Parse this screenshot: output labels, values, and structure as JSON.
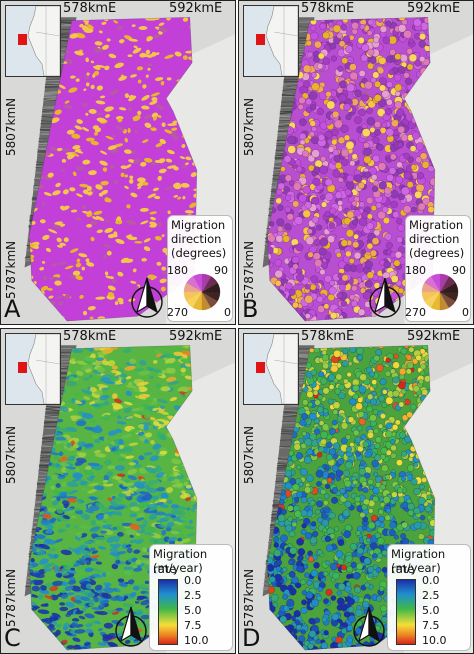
{
  "figure": {
    "panels": [
      {
        "letter": "A",
        "variable": "direction",
        "x_ticks": [
          "578kmE",
          "592kmE"
        ],
        "y_ticks": [
          "5807kmN",
          "5787kmN"
        ],
        "legend": {
          "title_lines": [
            "Migration",
            "direction",
            "(degrees)"
          ],
          "wheel_labels": {
            "top_left": "180",
            "top_right": "90",
            "bottom_left": "270",
            "bottom_right": "0"
          }
        }
      },
      {
        "letter": "B",
        "variable": "direction",
        "x_ticks": [
          "578kmE",
          "592kmE"
        ],
        "y_ticks": [
          "5807kmN",
          "5787kmN"
        ],
        "legend": {
          "title_lines": [
            "Migration",
            "direction",
            "(degrees)"
          ],
          "wheel_labels": {
            "top_left": "180",
            "top_right": "90",
            "bottom_left": "270",
            "bottom_right": "0"
          }
        }
      },
      {
        "letter": "C",
        "variable": "rate",
        "x_ticks": [
          "578kmE",
          "592kmE"
        ],
        "y_ticks": [
          "5807kmN",
          "5787kmN"
        ],
        "legend": {
          "title_lines": [
            "Migration rate",
            "(m/year)"
          ],
          "ticks": [
            "0.0",
            "2.5",
            "5.0",
            "7.5",
            "10.0"
          ]
        }
      },
      {
        "letter": "D",
        "variable": "rate",
        "x_ticks": [
          "578kmE",
          "592kmE"
        ],
        "y_ticks": [
          "5807kmN",
          "5787kmN"
        ],
        "legend": {
          "title_lines": [
            "Migration rate",
            "(m/year)"
          ],
          "ticks": [
            "0.0",
            "2.5",
            "5.0",
            "7.5",
            "10.0"
          ]
        }
      }
    ],
    "colors": {
      "direction_base": "#c23fd8",
      "direction_accent": "#f0c020",
      "rate_low": "#1a2fa8",
      "rate_mid": "#3fb84a",
      "rate_high_mid": "#f2df3a",
      "rate_high": "#d6261a",
      "hillshade": "#6a6a6a",
      "inset_sea": "#dde6ec",
      "inset_study_area": "#e01414"
    }
  }
}
